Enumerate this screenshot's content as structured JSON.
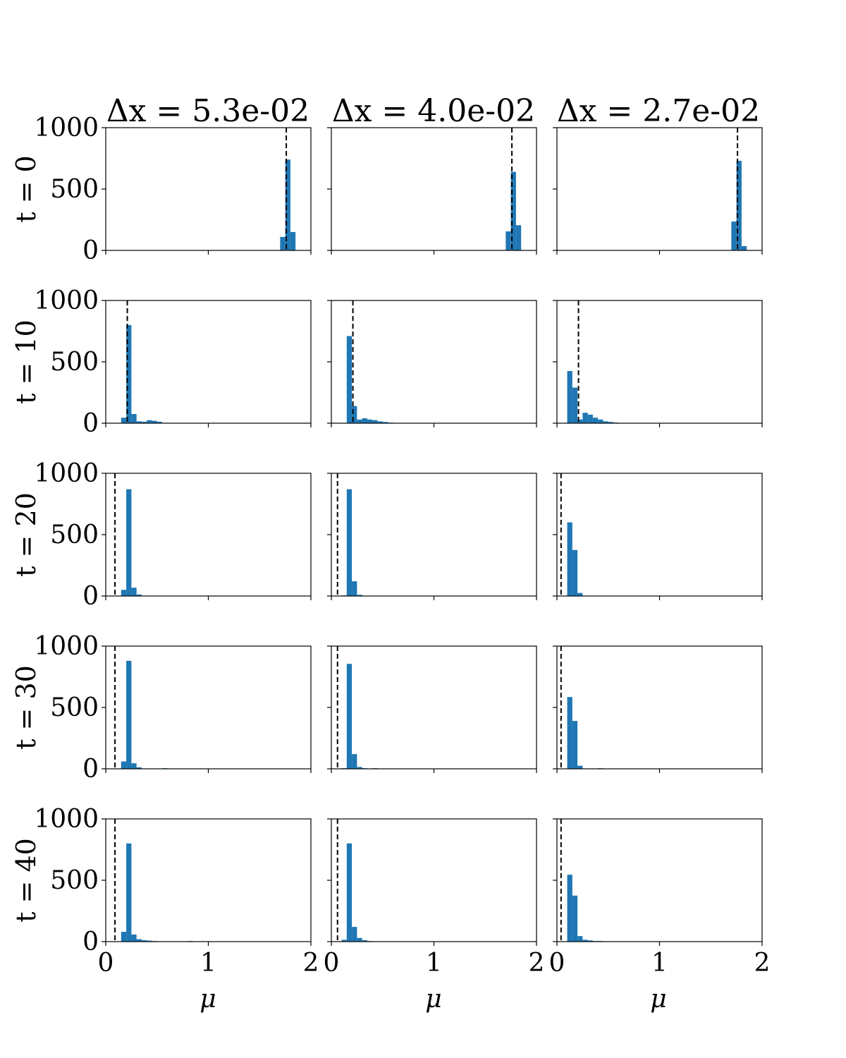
{
  "chart_data": {
    "type": "bar",
    "grid": false,
    "bar_color": "#1f77b4",
    "mean_line_color": "#000000",
    "xlim": [
      0,
      2
    ],
    "ylim": [
      0,
      1000
    ],
    "bin_width": 0.05,
    "x_ticks": [
      0,
      1,
      2
    ],
    "y_ticks": [
      0,
      500,
      1000
    ],
    "x_tick_labels": [
      "0",
      "1",
      "2"
    ],
    "y_tick_labels": [
      "0",
      "500",
      "1000"
    ],
    "xlabel": "μ",
    "column_titles": [
      "Δx = 5.3e-02",
      "Δx = 4.0e-02",
      "Δx = 2.7e-02"
    ],
    "row_labels": [
      "t = 0",
      "t = 10",
      "t = 20",
      "t = 30",
      "t = 40"
    ],
    "panels": [
      [
        {
          "bins": [
            [
              1.7,
              110
            ],
            [
              1.75,
              740
            ],
            [
              1.8,
              150
            ]
          ],
          "mean_line": 1.76
        },
        {
          "bins": [
            [
              0.15,
              45
            ],
            [
              0.2,
              800
            ],
            [
              0.25,
              75
            ],
            [
              0.3,
              15
            ],
            [
              0.35,
              12
            ],
            [
              0.4,
              25
            ],
            [
              0.45,
              20
            ],
            [
              0.5,
              12
            ],
            [
              0.55,
              3
            ]
          ],
          "mean_line": 0.21
        },
        {
          "bins": [
            [
              0.15,
              50
            ],
            [
              0.2,
              870
            ],
            [
              0.25,
              68
            ],
            [
              0.3,
              12
            ]
          ],
          "mean_line": 0.09
        },
        {
          "bins": [
            [
              0.15,
              60
            ],
            [
              0.2,
              880
            ],
            [
              0.25,
              45
            ],
            [
              0.3,
              12
            ],
            [
              0.55,
              5
            ]
          ],
          "mean_line": 0.09
        },
        {
          "bins": [
            [
              0.15,
              80
            ],
            [
              0.2,
              800
            ],
            [
              0.25,
              58
            ],
            [
              0.3,
              20
            ],
            [
              0.35,
              12
            ],
            [
              0.4,
              8
            ],
            [
              0.45,
              5
            ],
            [
              0.8,
              5
            ]
          ],
          "mean_line": 0.09
        }
      ],
      [
        {
          "bins": [
            [
              1.7,
              155
            ],
            [
              1.75,
              640
            ],
            [
              1.8,
              205
            ]
          ],
          "mean_line": 1.76
        },
        {
          "bins": [
            [
              0.15,
              710
            ],
            [
              0.2,
              140
            ],
            [
              0.25,
              30
            ],
            [
              0.3,
              40
            ],
            [
              0.35,
              30
            ],
            [
              0.4,
              25
            ],
            [
              0.45,
              15
            ],
            [
              0.5,
              10
            ],
            [
              0.55,
              5
            ]
          ],
          "mean_line": 0.21
        },
        {
          "bins": [
            [
              0.1,
              5
            ],
            [
              0.15,
              870
            ],
            [
              0.2,
              120
            ],
            [
              0.25,
              10
            ]
          ],
          "mean_line": 0.06
        },
        {
          "bins": [
            [
              0.1,
              5
            ],
            [
              0.15,
              855
            ],
            [
              0.2,
              120
            ],
            [
              0.25,
              15
            ],
            [
              0.3,
              5
            ],
            [
              0.4,
              5
            ]
          ],
          "mean_line": 0.06
        },
        {
          "bins": [
            [
              0.1,
              15
            ],
            [
              0.15,
              800
            ],
            [
              0.2,
              120
            ],
            [
              0.25,
              30
            ],
            [
              0.3,
              12
            ],
            [
              0.35,
              5
            ]
          ],
          "mean_line": 0.06
        }
      ],
      [
        {
          "bins": [
            [
              1.7,
              235
            ],
            [
              1.75,
              730
            ],
            [
              1.8,
              35
            ]
          ],
          "mean_line": 1.76
        },
        {
          "bins": [
            [
              0.1,
              425
            ],
            [
              0.15,
              290
            ],
            [
              0.2,
              30
            ],
            [
              0.25,
              85
            ],
            [
              0.3,
              70
            ],
            [
              0.35,
              45
            ],
            [
              0.4,
              30
            ],
            [
              0.45,
              15
            ],
            [
              0.5,
              10
            ],
            [
              0.55,
              5
            ]
          ],
          "mean_line": 0.21
        },
        {
          "bins": [
            [
              0.1,
              600
            ],
            [
              0.15,
              375
            ],
            [
              0.2,
              25
            ]
          ],
          "mean_line": 0.04
        },
        {
          "bins": [
            [
              0.1,
              585
            ],
            [
              0.15,
              390
            ],
            [
              0.2,
              25
            ],
            [
              0.4,
              5
            ]
          ],
          "mean_line": 0.04
        },
        {
          "bins": [
            [
              0.1,
              545
            ],
            [
              0.15,
              375
            ],
            [
              0.2,
              45
            ],
            [
              0.25,
              15
            ],
            [
              0.3,
              10
            ],
            [
              0.35,
              5
            ],
            [
              0.4,
              5
            ]
          ],
          "mean_line": 0.04
        }
      ]
    ]
  }
}
